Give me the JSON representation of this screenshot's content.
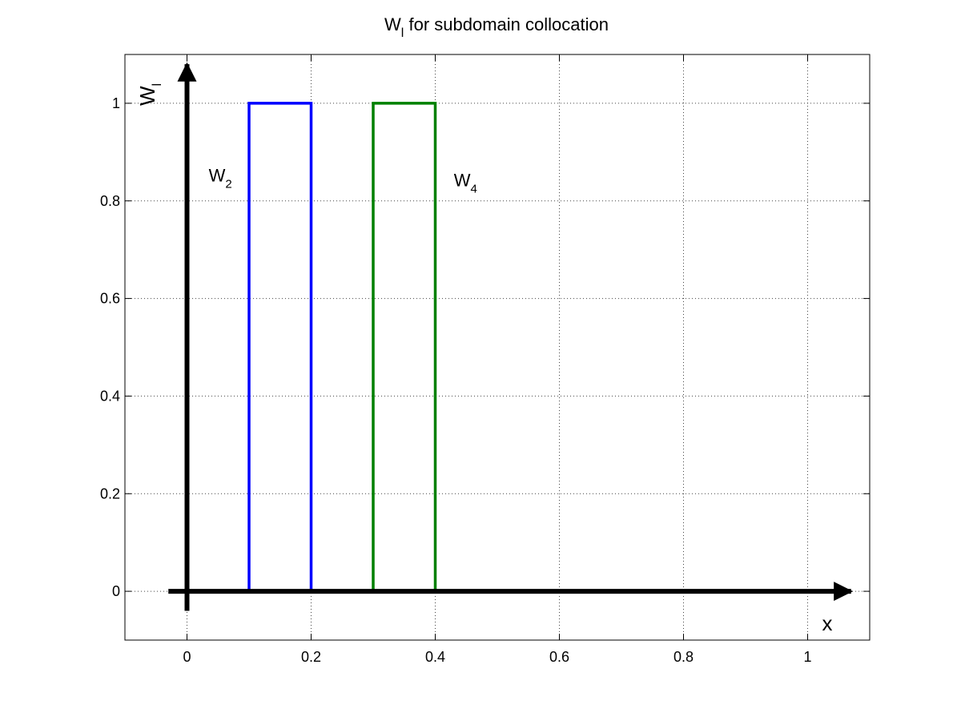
{
  "chart_data": {
    "type": "line",
    "title": {
      "main": "W",
      "sub": "l",
      "rest": " for subdomain collocation"
    },
    "xlabel": "x",
    "ylabel": {
      "main": "W",
      "sub": "l"
    },
    "xlim": [
      -0.1,
      1.1
    ],
    "ylim": [
      -0.1,
      1.1
    ],
    "x_ticks": [
      0,
      0.2,
      0.4,
      0.6,
      0.8,
      1
    ],
    "x_tick_labels": [
      "0",
      "0.2",
      "0.4",
      "0.6",
      "0.8",
      "1"
    ],
    "y_ticks": [
      0,
      0.2,
      0.4,
      0.6,
      0.8,
      1
    ],
    "y_tick_labels": [
      "0",
      "0.2",
      "0.4",
      "0.6",
      "0.8",
      "1"
    ],
    "grid": true,
    "series": [
      {
        "name": "W2",
        "color": "#0000ff",
        "x": [
          0.1,
          0.1,
          0.2,
          0.2
        ],
        "y": [
          0,
          1,
          1,
          0
        ]
      },
      {
        "name": "W4",
        "color": "#008000",
        "x": [
          0.3,
          0.3,
          0.4,
          0.4
        ],
        "y": [
          0,
          1,
          1,
          0
        ]
      }
    ],
    "annotations": [
      {
        "main": "W",
        "sub": "2",
        "x": 0.035,
        "y": 0.84,
        "color": "#000000"
      },
      {
        "main": "W",
        "sub": "4",
        "x": 0.43,
        "y": 0.83,
        "color": "#000000"
      }
    ],
    "arrows": {
      "x_axis": {
        "from": [
          -0.03,
          0
        ],
        "to": [
          1.07,
          0
        ]
      },
      "y_axis": {
        "from": [
          0,
          -0.04
        ],
        "to": [
          0,
          1.08
        ]
      }
    }
  }
}
